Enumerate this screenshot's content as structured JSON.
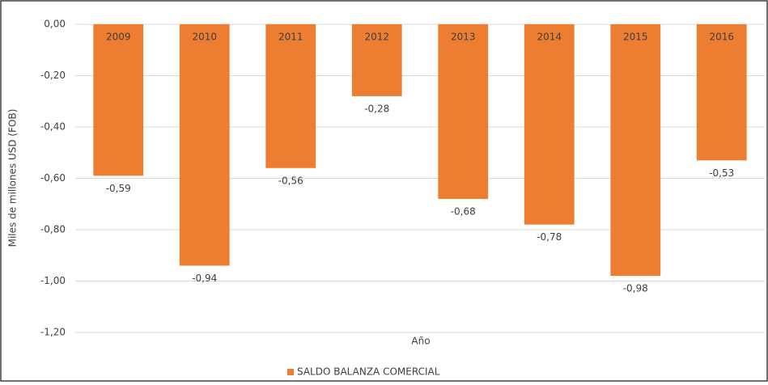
{
  "chart_data": {
    "type": "bar",
    "categories": [
      "2009",
      "2010",
      "2011",
      "2012",
      "2013",
      "2014",
      "2015",
      "2016"
    ],
    "series": [
      {
        "name": "SALDO BALANZA COMERCIAL",
        "color": "#ed7d31",
        "values": [
          -0.59,
          -0.94,
          -0.56,
          -0.28,
          -0.68,
          -0.78,
          -0.98,
          -0.53
        ],
        "value_labels": [
          "-0,59",
          "-0,94",
          "-0,56",
          "-0,28",
          "-0,68",
          "-0,78",
          "-0,98",
          "-0,53"
        ]
      }
    ],
    "ylabel": "Miles de millones USD (FOB)",
    "xlabel": "Año",
    "ylim": [
      -1.2,
      0
    ],
    "yticks": [
      {
        "value": 0,
        "label": "0,00"
      },
      {
        "value": -0.2,
        "label": "-0,20"
      },
      {
        "value": -0.4,
        "label": "-0,40"
      },
      {
        "value": -0.6,
        "label": "-0,60"
      },
      {
        "value": -0.8,
        "label": "-0,80"
      },
      {
        "value": -1,
        "label": "-1,00"
      },
      {
        "value": -1.2,
        "label": "-1,20"
      }
    ],
    "grid": true,
    "legend": "bottom"
  }
}
